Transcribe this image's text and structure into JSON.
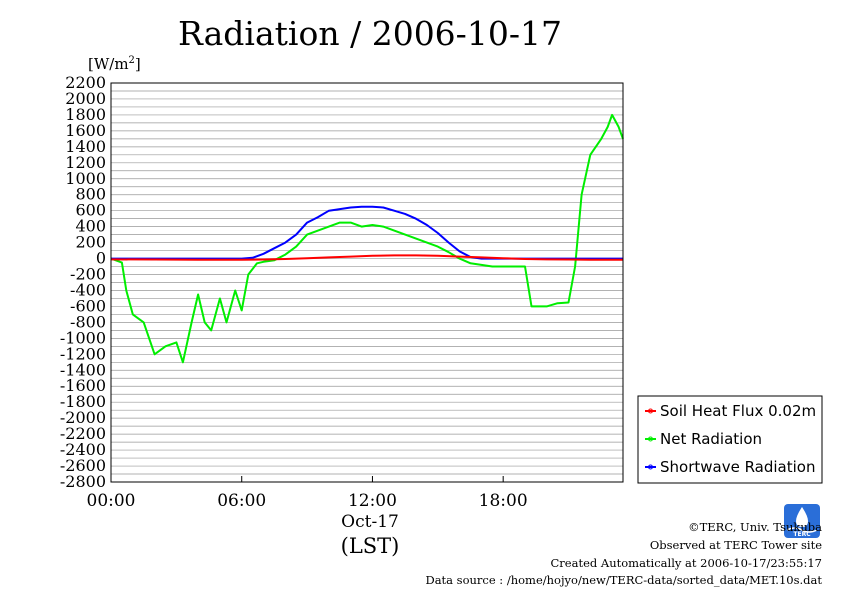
{
  "chart_data": {
    "type": "line",
    "title": "Radiation / 2006-10-17",
    "ylabel": "[W/m",
    "ylabel_sup": "2",
    "ylabel_close": "]",
    "xlabel_date": "Oct-17",
    "xlabel_tz": "(LST)",
    "x_unit": "hours",
    "xlim": [
      0,
      23.5
    ],
    "ylim": [
      -2800,
      2200
    ],
    "yticks": [
      2200,
      2000,
      1800,
      1600,
      1400,
      1200,
      1000,
      800,
      600,
      400,
      200,
      0,
      -200,
      -400,
      -600,
      -800,
      -1000,
      -1200,
      -1400,
      -1600,
      -1800,
      -2000,
      -2200,
      -2400,
      -2600,
      -2800
    ],
    "xticks": [
      {
        "x": 0,
        "label": "00:00"
      },
      {
        "x": 6,
        "label": "06:00"
      },
      {
        "x": 12,
        "label": "12:00"
      },
      {
        "x": 18,
        "label": "18:00"
      }
    ],
    "grid": true,
    "legend_position": "right",
    "series": [
      {
        "name": "Soil Heat Flux 0.02m",
        "color": "#ff0000",
        "x": [
          0,
          2,
          4,
          6,
          7,
          8,
          9,
          10,
          11,
          12,
          13,
          14,
          15,
          16,
          17,
          18,
          19,
          20,
          21,
          22,
          23,
          23.5
        ],
        "values": [
          -10,
          -12,
          -14,
          -15,
          -12,
          -5,
          5,
          15,
          25,
          35,
          40,
          40,
          35,
          25,
          15,
          5,
          -5,
          -10,
          -12,
          -14,
          -15,
          -15
        ]
      },
      {
        "name": "Net Radiation",
        "color": "#00ee00",
        "x": [
          0,
          0.5,
          0.7,
          1.0,
          1.5,
          2.0,
          2.5,
          3.0,
          3.3,
          3.7,
          4.0,
          4.3,
          4.6,
          5.0,
          5.3,
          5.7,
          6.0,
          6.3,
          6.7,
          7.0,
          7.5,
          8.0,
          8.5,
          9.0,
          9.5,
          10.0,
          10.5,
          11.0,
          11.5,
          12.0,
          12.5,
          13.0,
          13.5,
          14.0,
          14.5,
          15.0,
          15.5,
          16.0,
          16.5,
          17.0,
          17.5,
          18.0,
          18.5,
          19.0,
          19.3,
          20.0,
          20.5,
          21.0,
          21.3,
          21.6,
          22.0,
          22.5,
          22.8,
          23.0,
          23.3,
          23.5
        ],
        "values": [
          0,
          -50,
          -400,
          -700,
          -800,
          -1200,
          -1100,
          -1050,
          -1300,
          -800,
          -450,
          -800,
          -900,
          -500,
          -800,
          -400,
          -650,
          -200,
          -60,
          -40,
          -20,
          50,
          150,
          300,
          350,
          400,
          450,
          450,
          400,
          420,
          400,
          350,
          300,
          250,
          200,
          150,
          80,
          0,
          -60,
          -80,
          -100,
          -100,
          -100,
          -100,
          -600,
          -600,
          -560,
          -550,
          -100,
          800,
          1300,
          1500,
          1650,
          1800,
          1650,
          1500
        ]
      },
      {
        "name": "Shortwave Radiation",
        "color": "#0000ff",
        "x": [
          0,
          6.0,
          6.5,
          7.0,
          7.5,
          8.0,
          8.5,
          9.0,
          9.5,
          10.0,
          10.5,
          11.0,
          11.5,
          12.0,
          12.5,
          13.0,
          13.5,
          14.0,
          14.5,
          15.0,
          15.5,
          16.0,
          16.5,
          17.0,
          18.0,
          19.0,
          20.0,
          21.0,
          22.0,
          23.5
        ],
        "values": [
          0,
          0,
          10,
          60,
          130,
          200,
          300,
          450,
          520,
          600,
          620,
          640,
          650,
          650,
          640,
          600,
          560,
          500,
          420,
          320,
          200,
          90,
          20,
          0,
          0,
          0,
          0,
          0,
          0,
          0
        ]
      }
    ]
  },
  "credits": {
    "copyright": "©TERC, Univ. Tsukuba",
    "observed": "Observed at TERC Tower site",
    "created": "Created Automatically at 2006-10-17/23:55:17",
    "source": "Data source : /home/hojyo/new/TERC-data/sorted_data/MET.10s.dat"
  },
  "logo_text": "TERC",
  "colors": {
    "grid": "#999999",
    "axis": "#000000"
  }
}
